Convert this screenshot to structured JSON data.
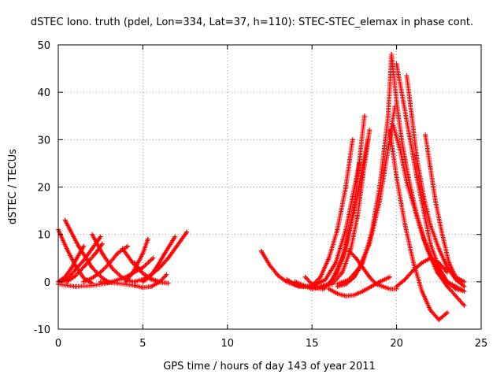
{
  "chart_data": {
    "type": "scatter",
    "title": "dSTEC Iono. truth (pdel, Lon=334, Lat=37, h=110): STEC-STEC_elemax in phase cont.",
    "xlabel": "GPS time / hours of day 143 of year 2011",
    "ylabel": "dSTEC  / TECUs",
    "xlim": [
      0,
      25
    ],
    "ylim": [
      -10,
      50
    ],
    "xticks": [
      0,
      5,
      10,
      15,
      20,
      25
    ],
    "yticks": [
      -10,
      0,
      10,
      20,
      30,
      40,
      50
    ],
    "xtick_labels": [
      "0",
      "5",
      "10",
      "15",
      "20",
      "25"
    ],
    "ytick_labels": [
      "-10",
      "0",
      "10",
      "20",
      "30",
      "40",
      "50"
    ],
    "grid": true,
    "marker": "plus",
    "color": "#ff0000",
    "series": [
      {
        "x": [
          0.0,
          0.5,
          1.0,
          1.5,
          2.0
        ],
        "y": [
          11.0,
          7.0,
          3.5,
          0.8,
          -0.3
        ]
      },
      {
        "x": [
          0.0,
          0.4,
          0.8,
          1.1,
          1.5
        ],
        "y": [
          0.0,
          1.0,
          3.0,
          5.0,
          7.5
        ]
      },
      {
        "x": [
          0.4,
          1.2,
          2.0,
          2.6,
          3.0
        ],
        "y": [
          13.0,
          7.5,
          3.0,
          0.8,
          -0.1
        ]
      },
      {
        "x": [
          0.2,
          0.6,
          1.0,
          1.5,
          2.0,
          2.5
        ],
        "y": [
          0.0,
          0.8,
          2.5,
          4.5,
          7.0,
          9.5
        ]
      },
      {
        "x": [
          0.5,
          1.0,
          1.6,
          2.2,
          2.6
        ],
        "y": [
          0.0,
          1.2,
          3.5,
          6.0,
          8.0
        ]
      },
      {
        "x": [
          2.0,
          2.6,
          3.2,
          3.8,
          4.4
        ],
        "y": [
          10.0,
          6.0,
          2.8,
          0.8,
          0.0
        ]
      },
      {
        "x": [
          1.5,
          2.0,
          2.5,
          3.0,
          3.5,
          4.1
        ],
        "y": [
          0.0,
          0.8,
          2.0,
          3.8,
          6.0,
          7.5
        ]
      },
      {
        "x": [
          0.0,
          1.0,
          2.0,
          3.0,
          4.0,
          5.0,
          5.6
        ],
        "y": [
          -0.5,
          -1.0,
          -0.8,
          -0.2,
          1.0,
          3.0,
          5.0
        ]
      },
      {
        "x": [
          3.8,
          4.4,
          5.0,
          5.5,
          6.0
        ],
        "y": [
          7.0,
          4.0,
          1.8,
          0.6,
          0.0
        ]
      },
      {
        "x": [
          4.5,
          5.0,
          5.5,
          6.0,
          6.5,
          7.0,
          7.6
        ],
        "y": [
          0.0,
          0.5,
          1.5,
          3.0,
          5.0,
          7.5,
          10.5
        ]
      },
      {
        "x": [
          2.5,
          3.5,
          4.5,
          5.0,
          5.5,
          6.0,
          6.4
        ],
        "y": [
          0.0,
          -0.3,
          -0.8,
          -1.2,
          -1.0,
          0.0,
          1.5
        ]
      },
      {
        "x": [
          4.5,
          5.0,
          5.5,
          6.0,
          6.5
        ],
        "y": [
          4.0,
          1.8,
          0.5,
          -0.1,
          -0.3
        ]
      },
      {
        "x": [
          4.0,
          4.5,
          5.0,
          5.3
        ],
        "y": [
          0.0,
          2.5,
          6.0,
          9.0
        ]
      },
      {
        "x": [
          5.0,
          5.4,
          5.8,
          6.3,
          6.9
        ],
        "y": [
          0.0,
          1.0,
          3.0,
          6.0,
          9.5
        ]
      },
      {
        "x": [
          12.0,
          12.5,
          13.0,
          13.5,
          14.0,
          14.5
        ],
        "y": [
          6.5,
          3.5,
          1.3,
          0.0,
          -0.7,
          -1.0
        ]
      },
      {
        "x": [
          14.5,
          15.0,
          15.5,
          16.0,
          16.5,
          17.0,
          17.4
        ],
        "y": [
          -1.0,
          -0.8,
          1.0,
          5.0,
          11.0,
          20.0,
          30.0
        ]
      },
      {
        "x": [
          14.6,
          15.2,
          15.7,
          16.2,
          16.8,
          17.5,
          18.3
        ],
        "y": [
          1.0,
          -1.3,
          -1.5,
          0.5,
          5.0,
          15.0,
          30.0
        ]
      },
      {
        "x": [
          15.5,
          16.2,
          16.8,
          17.3,
          17.7,
          18.0,
          18.4
        ],
        "y": [
          -1.0,
          -0.5,
          2.0,
          7.0,
          14.0,
          22.0,
          32.0
        ]
      },
      {
        "x": [
          13.5,
          14.2,
          15.0,
          15.8,
          16.4,
          17.0,
          17.4,
          17.8
        ],
        "y": [
          0.5,
          -1.0,
          -1.0,
          0.5,
          4.0,
          11.0,
          18.0,
          25.0
        ]
      },
      {
        "x": [
          14.0,
          15.0,
          16.0,
          16.5,
          17.0,
          17.5,
          18.1
        ],
        "y": [
          0.0,
          -1.5,
          -0.5,
          2.0,
          7.0,
          16.0,
          35.0
        ]
      },
      {
        "x": [
          16.0,
          16.5,
          17.0,
          17.5,
          18.0,
          18.5,
          19.0,
          19.6
        ],
        "y": [
          -1.5,
          -2.5,
          -3.0,
          -2.8,
          -2.0,
          -1.0,
          0.0,
          1.0
        ]
      },
      {
        "x": [
          16.5,
          17.0,
          17.5,
          18.0,
          18.5,
          19.0,
          19.5,
          19.7
        ],
        "y": [
          -1.0,
          -0.5,
          1.0,
          4.0,
          10.0,
          20.0,
          35.0,
          48.0
        ]
      },
      {
        "x": [
          16.5,
          17.2,
          17.8,
          18.4,
          19.0,
          19.5,
          19.9
        ],
        "y": [
          -0.5,
          0.5,
          3.0,
          8.0,
          17.0,
          28.0,
          37.0
        ]
      },
      {
        "x": [
          17.2,
          17.6,
          18.0,
          18.4,
          18.8,
          19.2,
          19.6,
          20.0
        ],
        "y": [
          6.5,
          5.0,
          3.0,
          1.0,
          -0.5,
          -1.0,
          -1.5,
          -1.5
        ]
      },
      {
        "x": [
          20.0,
          20.5,
          21.0,
          21.5,
          22.0,
          22.5,
          23.0
        ],
        "y": [
          -1.0,
          0.5,
          2.5,
          4.0,
          5.0,
          4.0,
          2.0
        ]
      },
      {
        "x": [
          19.7,
          20.0,
          20.3,
          20.7,
          21.2,
          21.8,
          22.4,
          23.0,
          24.0
        ],
        "y": [
          48.0,
          38.0,
          30.0,
          22.0,
          14.0,
          7.0,
          2.0,
          -1.0,
          -5.0
        ]
      },
      {
        "x": [
          19.8,
          20.2,
          20.6,
          21.1,
          21.6,
          22.2,
          22.8,
          23.5,
          24.0
        ],
        "y": [
          33.0,
          28.0,
          21.0,
          15.0,
          9.0,
          4.0,
          0.5,
          -1.5,
          -2.0
        ]
      },
      {
        "x": [
          20.0,
          20.4,
          20.8,
          21.2,
          21.6,
          22.0,
          22.5,
          23.0,
          24.0
        ],
        "y": [
          46.0,
          38.0,
          30.0,
          22.0,
          15.0,
          8.0,
          3.0,
          0.0,
          -2.0
        ]
      },
      {
        "x": [
          20.6,
          20.9,
          21.2,
          21.6,
          22.0,
          22.5,
          23.0,
          23.5,
          24.0
        ],
        "y": [
          43.5,
          35.0,
          26.0,
          18.0,
          12.0,
          7.0,
          3.0,
          0.5,
          -1.0
        ]
      },
      {
        "x": [
          21.7,
          22.0,
          22.3,
          22.7,
          23.1,
          23.5,
          24.0
        ],
        "y": [
          31.0,
          24.0,
          17.0,
          10.0,
          4.0,
          1.0,
          0.0
        ]
      },
      {
        "x": [
          19.6,
          20.0,
          20.5,
          21.0,
          21.5,
          22.0,
          22.5,
          23.0
        ],
        "y": [
          32.0,
          22.0,
          12.0,
          4.0,
          -2.0,
          -6.0,
          -8.0,
          -6.5
        ]
      }
    ]
  }
}
